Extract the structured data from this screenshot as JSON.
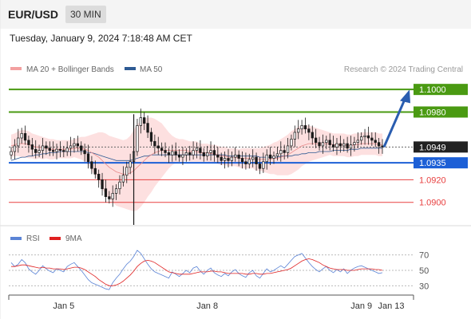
{
  "header": {
    "symbol": "EUR/USD",
    "timeframe": "30 MIN"
  },
  "datetime": "Tuesday, January 9, 2024 7:18:48 AM CET",
  "legend": {
    "ma": "MA 20 + Bollinger Bands",
    "ma50": "MA 50",
    "credit": "Research © 2024 Trading Central"
  },
  "rsi_legend": {
    "rsi": "RSI",
    "ma": "9MA"
  },
  "colors": {
    "green": "#4a9a12",
    "blue": "#1c5fd6",
    "red": "#e84040",
    "band": "#fde0e0",
    "up": "#1a1a1a",
    "down": "#1a1a1a",
    "current": "#222222"
  },
  "chart_data": {
    "type": "candlestick",
    "ylim": [
      1.088,
      1.101
    ],
    "x_ticks": [
      {
        "label": "Jan 5",
        "index": 15
      },
      {
        "label": "Jan 8",
        "index": 56
      },
      {
        "label": "Jan 9",
        "index": 100
      },
      {
        "label": "Jan 13",
        "index": 115
      }
    ],
    "levels": [
      {
        "value": 1.1,
        "label": "1.1000",
        "kind": "resistance"
      },
      {
        "value": 1.098,
        "label": "1.0980",
        "kind": "resistance"
      },
      {
        "value": 1.0949,
        "label": "1.0949",
        "kind": "current"
      },
      {
        "value": 1.0935,
        "label": "1.0935",
        "kind": "pivot"
      },
      {
        "value": 1.092,
        "label": "1.0920",
        "kind": "support"
      },
      {
        "value": 1.09,
        "label": "1.0900",
        "kind": "support"
      }
    ],
    "forecast": {
      "from": 1.0949,
      "to": 1.0997
    },
    "close": [
      1.0945,
      1.095,
      1.0957,
      1.0961,
      1.0955,
      1.0951,
      1.0947,
      1.0944,
      1.0946,
      1.095,
      1.0948,
      1.0946,
      1.0945,
      1.0947,
      1.0946,
      1.0945,
      1.0948,
      1.095,
      1.0952,
      1.095,
      1.0946,
      1.0943,
      1.0936,
      1.093,
      1.0925,
      1.092,
      1.0912,
      1.0905,
      1.0903,
      1.0908,
      1.0912,
      1.0918,
      1.0924,
      1.0931,
      1.0936,
      1.0945,
      1.0968,
      1.0975,
      1.097,
      1.0962,
      1.0954,
      1.095,
      1.0948,
      1.0946,
      1.0944,
      1.0942,
      1.0945,
      1.0942,
      1.094,
      1.0942,
      1.0944,
      1.0942,
      1.0946,
      1.0948,
      1.0944,
      1.0941,
      1.0944,
      1.0946,
      1.0942,
      1.094,
      1.0937,
      1.0939,
      1.0937,
      1.094,
      1.0942,
      1.0939,
      1.0936,
      1.0934,
      1.0938,
      1.094,
      1.0934,
      1.093,
      1.0936,
      1.0942,
      1.0939,
      1.0941,
      1.0943,
      1.0946,
      1.0944,
      1.095,
      1.0956,
      1.0962,
      1.0965,
      1.0968,
      1.0965,
      1.0962,
      1.0957,
      1.0953,
      1.095,
      1.0953,
      1.0955,
      1.0951,
      1.0949,
      1.0952,
      1.095,
      1.0952,
      1.0948,
      1.0951,
      1.0953,
      1.0955,
      1.0958,
      1.0959,
      1.0957,
      1.0955,
      1.0953,
      1.095,
      1.0949
    ],
    "ma20": [
      1.095,
      1.0951,
      1.0952,
      1.0952,
      1.0952,
      1.0951,
      1.095,
      1.0949,
      1.0949,
      1.0948,
      1.0948,
      1.0947,
      1.0947,
      1.0947,
      1.0947,
      1.0947,
      1.0947,
      1.0947,
      1.0948,
      1.0948,
      1.0948,
      1.0947,
      1.0946,
      1.0944,
      1.0942,
      1.094,
      1.0937,
      1.0934,
      1.0931,
      1.0929,
      1.0927,
      1.0926,
      1.0925,
      1.0925,
      1.0926,
      1.0928,
      1.0931,
      1.0934,
      1.0937,
      1.094,
      1.0942,
      1.0944,
      1.0945,
      1.0946,
      1.0946,
      1.0946,
      1.0946,
      1.0946,
      1.0946,
      1.0946,
      1.0946,
      1.0945,
      1.0945,
      1.0945,
      1.0944,
      1.0944,
      1.0944,
      1.0943,
      1.0943,
      1.0942,
      1.0941,
      1.0941,
      1.094,
      1.094,
      1.094,
      1.0939,
      1.0939,
      1.0939,
      1.0939,
      1.0939,
      1.0938,
      1.0938,
      1.0938,
      1.0938,
      1.0938,
      1.0939,
      1.0939,
      1.094,
      1.0941,
      1.0942,
      1.0944,
      1.0946,
      1.0948,
      1.095,
      1.0951,
      1.0952,
      1.0952,
      1.0952,
      1.0952,
      1.0952,
      1.0952,
      1.0952,
      1.0951,
      1.0951,
      1.0951,
      1.0951,
      1.095,
      1.095,
      1.0951,
      1.0951,
      1.0952,
      1.0952,
      1.0952,
      1.0952,
      1.0952,
      1.0951,
      1.0951
    ],
    "ma50": [
      1.0937,
      1.0938,
      1.0939,
      1.094,
      1.094,
      1.0941,
      1.0941,
      1.0942,
      1.0942,
      1.0943,
      1.0943,
      1.0944,
      1.0944,
      1.0944,
      1.0945,
      1.0945,
      1.0945,
      1.0945,
      1.0945,
      1.0945,
      1.0945,
      1.0945,
      1.0944,
      1.0944,
      1.0943,
      1.0942,
      1.0941,
      1.094,
      1.0939,
      1.0938,
      1.0937,
      1.0937,
      1.0937,
      1.0937,
      1.0937,
      1.0938,
      1.0939,
      1.094,
      1.0941,
      1.0941,
      1.0942,
      1.0942,
      1.0942,
      1.0942,
      1.0942,
      1.0942,
      1.0942,
      1.0942,
      1.0942,
      1.0942,
      1.0942,
      1.0942,
      1.0942,
      1.0942,
      1.0942,
      1.0942,
      1.0942,
      1.0942,
      1.0942,
      1.0942,
      1.0942,
      1.0942,
      1.0941,
      1.0941,
      1.0941,
      1.0941,
      1.0941,
      1.0941,
      1.0941,
      1.0941,
      1.0941,
      1.094,
      1.094,
      1.094,
      1.094,
      1.094,
      1.094,
      1.0941,
      1.0941,
      1.0941,
      1.0941,
      1.0942,
      1.0942,
      1.0943,
      1.0943,
      1.0944,
      1.0944,
      1.0944,
      1.0945,
      1.0945,
      1.0945,
      1.0945,
      1.0946,
      1.0946,
      1.0946,
      1.0946,
      1.0946,
      1.0947,
      1.0947,
      1.0947,
      1.0948,
      1.0948,
      1.0948,
      1.0948,
      1.0948,
      1.0948,
      1.0948
    ],
    "band_width": [
      0.001,
      0.001,
      0.0011,
      0.0012,
      0.0012,
      0.0012,
      0.0011,
      0.0011,
      0.001,
      0.001,
      0.0009,
      0.0009,
      0.0009,
      0.0008,
      0.0008,
      0.0008,
      0.0008,
      0.0008,
      0.0008,
      0.0009,
      0.001,
      0.0011,
      0.0013,
      0.0016,
      0.0019,
      0.0022,
      0.0025,
      0.0027,
      0.0028,
      0.0029,
      0.003,
      0.003,
      0.003,
      0.0031,
      0.0033,
      0.0036,
      0.0038,
      0.0038,
      0.0037,
      0.0035,
      0.0033,
      0.003,
      0.0027,
      0.0024,
      0.002,
      0.0016,
      0.0013,
      0.0011,
      0.001,
      0.001,
      0.0009,
      0.0009,
      0.0009,
      0.0009,
      0.0008,
      0.0008,
      0.0008,
      0.0008,
      0.0008,
      0.0008,
      0.0008,
      0.0008,
      0.0008,
      0.0008,
      0.0008,
      0.0008,
      0.0009,
      0.0009,
      0.0009,
      0.0009,
      0.001,
      0.001,
      0.0011,
      0.0012,
      0.0013,
      0.0014,
      0.0015,
      0.0016,
      0.0017,
      0.0018,
      0.0019,
      0.0019,
      0.0019,
      0.0018,
      0.0017,
      0.0016,
      0.0015,
      0.0014,
      0.0013,
      0.0012,
      0.0011,
      0.001,
      0.001,
      0.001,
      0.001,
      0.001,
      0.001,
      0.001,
      0.001,
      0.001,
      0.001,
      0.001,
      0.001,
      0.001,
      0.001,
      0.001,
      0.001
    ],
    "rsi": {
      "ylim": [
        20,
        80
      ],
      "ticks": [
        70,
        50,
        30
      ],
      "values": [
        60,
        55,
        58,
        64,
        60,
        52,
        48,
        45,
        50,
        56,
        52,
        49,
        47,
        52,
        50,
        48,
        55,
        58,
        60,
        55,
        50,
        44,
        38,
        34,
        32,
        30,
        28,
        26,
        25,
        34,
        40,
        45,
        52,
        58,
        62,
        68,
        76,
        72,
        65,
        58,
        52,
        48,
        46,
        44,
        42,
        40,
        48,
        45,
        42,
        46,
        50,
        47,
        53,
        55,
        49,
        45,
        50,
        53,
        47,
        44,
        42,
        46,
        43,
        48,
        51,
        46,
        43,
        41,
        47,
        50,
        43,
        40,
        46,
        52,
        48,
        50,
        53,
        56,
        53,
        58,
        63,
        68,
        70,
        72,
        66,
        60,
        55,
        51,
        48,
        52,
        55,
        50,
        47,
        51,
        48,
        52,
        46,
        50,
        53,
        55,
        56,
        54,
        52,
        50,
        48,
        46,
        47
      ],
      "ma9": [
        55,
        55,
        56,
        57,
        57,
        56,
        55,
        54,
        53,
        54,
        53,
        53,
        52,
        52,
        52,
        51,
        52,
        53,
        54,
        54,
        53,
        51,
        48,
        45,
        42,
        38,
        35,
        32,
        30,
        30,
        31,
        33,
        36,
        40,
        44,
        49,
        55,
        59,
        62,
        63,
        62,
        60,
        57,
        54,
        51,
        48,
        47,
        46,
        45,
        45,
        45,
        45,
        46,
        47,
        48,
        48,
        48,
        49,
        49,
        48,
        48,
        47,
        46,
        46,
        46,
        46,
        46,
        45,
        45,
        46,
        46,
        45,
        45,
        46,
        46,
        47,
        48,
        49,
        50,
        51,
        53,
        56,
        59,
        62,
        64,
        65,
        64,
        62,
        60,
        57,
        55,
        53,
        52,
        51,
        51,
        51,
        50,
        50,
        50,
        51,
        52,
        52,
        52,
        52,
        51,
        51,
        50
      ]
    }
  }
}
